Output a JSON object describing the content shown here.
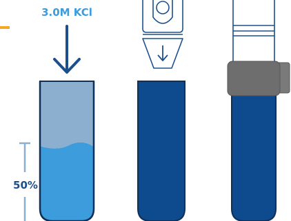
{
  "labels": {
    "solution": "3.0M KCl",
    "fill_level": "50%"
  },
  "fill_fraction": 0.5,
  "colors": {
    "accent_orange": "#f5a623",
    "arrow_navy": "#1c4f8c",
    "solution_cyan": "#3d9cdb",
    "empty_tube_light_blue": "#8cafcf",
    "filled_tube_navy": "#0d4a8e",
    "cap_gray": "#6e6e6e",
    "dispenser_outline": "#1c4f8c",
    "dispenser_body": "#ffffff",
    "tube_outline": "#0e2f57"
  },
  "icons": [
    "down-arrow-icon",
    "dispenser-nozzle-icon",
    "bracket-icon"
  ]
}
